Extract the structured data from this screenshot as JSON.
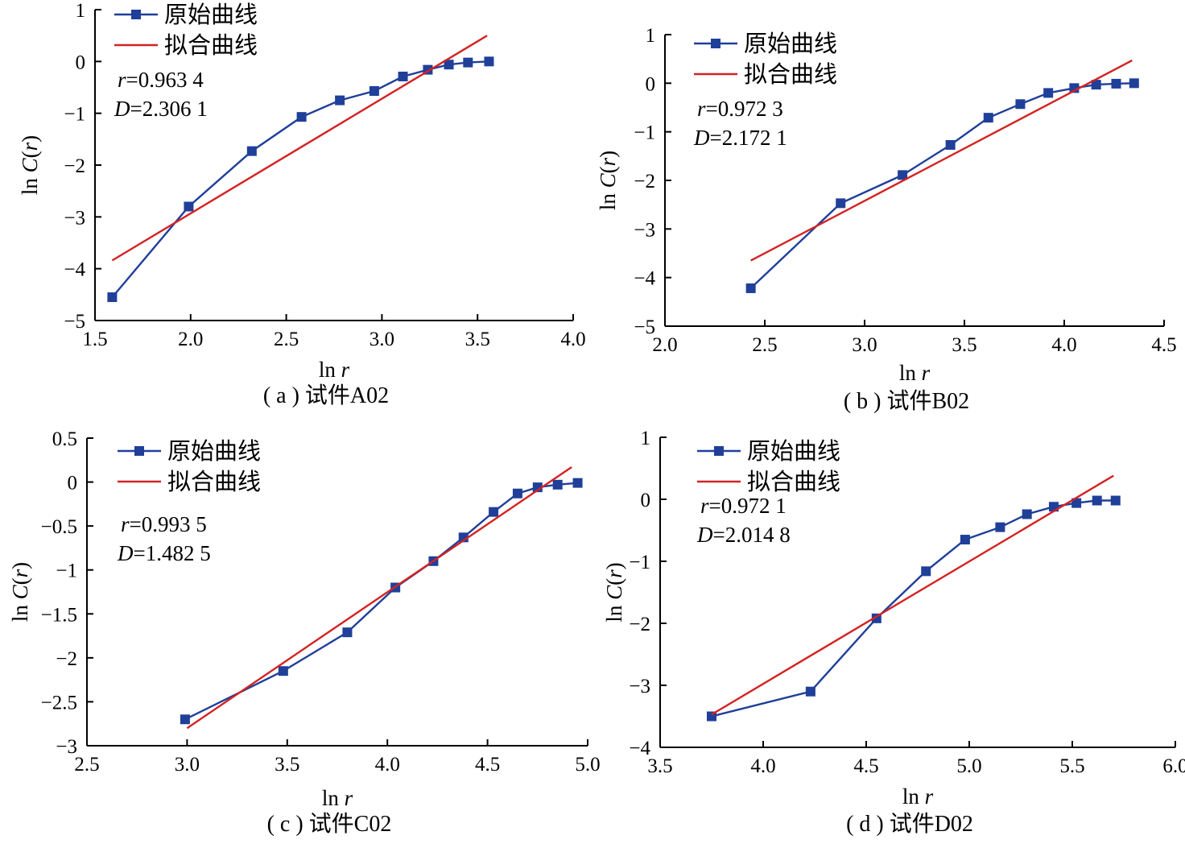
{
  "legend": {
    "raw_label": "原始曲线",
    "fit_label": "拟合曲线"
  },
  "colors": {
    "raw": "#1f3f99",
    "fit": "#d42222",
    "axis": "#000000"
  },
  "chart_data": [
    {
      "type": "line",
      "caption": "( a ) 试件A02",
      "xlabel": "ln r",
      "ylabel": "ln C(r)",
      "xlim": [
        1.5,
        4.0
      ],
      "ylim": [
        -5,
        1
      ],
      "xticks": [
        1.5,
        2.0,
        2.5,
        3.0,
        3.5,
        4.0
      ],
      "yticks": [
        -5,
        -4,
        -3,
        -2,
        -1,
        0,
        1
      ],
      "r_value": "0.963 4",
      "D_value": "2.306 1",
      "series": [
        {
          "name": "原始曲线",
          "kind": "raw",
          "x": [
            1.59,
            1.99,
            2.32,
            2.58,
            2.78,
            2.96,
            3.11,
            3.24,
            3.35,
            3.45,
            3.56
          ],
          "y": [
            -4.55,
            -2.8,
            -1.73,
            -1.07,
            -0.75,
            -0.57,
            -0.29,
            -0.16,
            -0.06,
            -0.02,
            0.0
          ]
        },
        {
          "name": "拟合曲线",
          "kind": "fit",
          "x": [
            1.59,
            3.55
          ],
          "y": [
            -3.84,
            0.5
          ]
        }
      ]
    },
    {
      "type": "line",
      "caption": "( b ) 试件B02",
      "xlabel": "ln r",
      "ylabel": "ln C(r)",
      "xlim": [
        2.0,
        4.5
      ],
      "ylim": [
        -5,
        1
      ],
      "xticks": [
        2.0,
        2.5,
        3.0,
        3.5,
        4.0,
        4.5
      ],
      "yticks": [
        -5,
        -4,
        -3,
        -2,
        -1,
        0,
        1
      ],
      "r_value": "0.972 3",
      "D_value": "2.172 1",
      "series": [
        {
          "name": "原始曲线",
          "kind": "raw",
          "x": [
            2.43,
            2.88,
            3.19,
            3.43,
            3.62,
            3.78,
            3.92,
            4.05,
            4.16,
            4.26,
            4.35
          ],
          "y": [
            -4.22,
            -2.47,
            -1.89,
            -1.27,
            -0.71,
            -0.43,
            -0.2,
            -0.1,
            -0.03,
            -0.01,
            0.0
          ]
        },
        {
          "name": "拟合曲线",
          "kind": "fit",
          "x": [
            2.43,
            4.34
          ],
          "y": [
            -3.65,
            0.47
          ]
        }
      ]
    },
    {
      "type": "line",
      "caption": "( c ) 试件C02",
      "xlabel": "ln r",
      "ylabel": "ln C(r)",
      "xlim": [
        2.5,
        5.0
      ],
      "ylim": [
        -3.0,
        0.5
      ],
      "xticks": [
        2.5,
        3.0,
        3.5,
        4.0,
        4.5,
        5.0
      ],
      "yticks": [
        -3.0,
        -2.5,
        -2.0,
        -1.5,
        -1.0,
        -0.5,
        0,
        0.5
      ],
      "r_value": "0.993 5",
      "D_value": "1.482 5",
      "series": [
        {
          "name": "原始曲线",
          "kind": "raw",
          "x": [
            2.99,
            3.48,
            3.8,
            4.04,
            4.23,
            4.38,
            4.53,
            4.65,
            4.75,
            4.85,
            4.95
          ],
          "y": [
            -2.7,
            -2.15,
            -1.71,
            -1.2,
            -0.9,
            -0.63,
            -0.34,
            -0.13,
            -0.06,
            -0.03,
            -0.01
          ]
        },
        {
          "name": "拟合曲线",
          "kind": "fit",
          "x": [
            3.0,
            4.92
          ],
          "y": [
            -2.8,
            0.17
          ]
        }
      ]
    },
    {
      "type": "line",
      "caption": "( d ) 试件D02",
      "xlabel": "ln r",
      "ylabel": "ln C(r)",
      "xlim": [
        3.5,
        6.0
      ],
      "ylim": [
        -4,
        1
      ],
      "xticks": [
        3.5,
        4.0,
        4.5,
        5.0,
        5.5,
        6.0
      ],
      "yticks": [
        -4,
        -3,
        -2,
        -1,
        0,
        1
      ],
      "r_value": "0.972 1",
      "D_value": "2.014 8",
      "series": [
        {
          "name": "原始曲线",
          "kind": "raw",
          "x": [
            3.75,
            4.23,
            4.55,
            4.79,
            4.98,
            5.15,
            5.28,
            5.41,
            5.52,
            5.62,
            5.71
          ],
          "y": [
            -3.5,
            -3.1,
            -1.92,
            -1.16,
            -0.65,
            -0.45,
            -0.24,
            -0.12,
            -0.06,
            -0.02,
            -0.02
          ]
        },
        {
          "name": "拟合曲线",
          "kind": "fit",
          "x": [
            3.75,
            5.7
          ],
          "y": [
            -3.47,
            0.38
          ]
        }
      ]
    }
  ]
}
